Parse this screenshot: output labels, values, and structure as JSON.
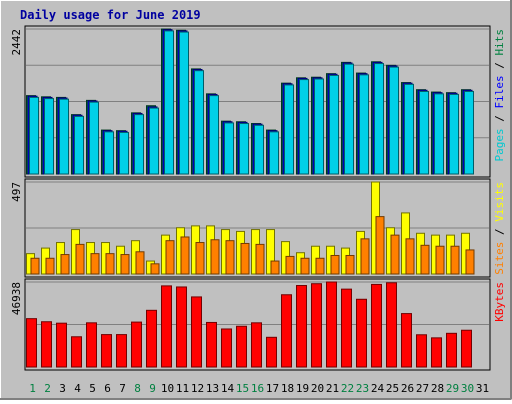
{
  "chart_data": {
    "type": "bar",
    "title": "Daily usage for June 2019",
    "categories": [
      "1",
      "2",
      "3",
      "4",
      "5",
      "6",
      "7",
      "8",
      "9",
      "10",
      "11",
      "12",
      "13",
      "14",
      "15",
      "16",
      "17",
      "18",
      "19",
      "20",
      "21",
      "22",
      "23",
      "24",
      "25",
      "26",
      "27",
      "28",
      "29",
      "30",
      "31"
    ],
    "weekend_days": [
      "1",
      "2",
      "8",
      "9",
      "15",
      "16",
      "22",
      "23",
      "29",
      "30"
    ],
    "panels": [
      {
        "max_label": "2442",
        "ymax": 2442,
        "axis_labels": [
          {
            "text": "Pages",
            "color": "#00c8d0"
          },
          {
            "text": " / ",
            "color": "#000000"
          },
          {
            "text": "Files",
            "color": "#0000ff"
          },
          {
            "text": " / ",
            "color": "#000000"
          },
          {
            "text": "Hits",
            "color": "#008040"
          }
        ],
        "series": [
          {
            "name": "Hits",
            "color": "#008040",
            "values": [
              1320,
              1300,
              1290,
              1000,
              1240,
              740,
              730,
              1030,
              1150,
              2442,
              2420,
              1770,
              1350,
              890,
              880,
              850,
              740,
              1530,
              1620,
              1630,
              1690,
              1880,
              1700,
              1890,
              1830,
              1540,
              1420,
              1380,
              1370,
              1420,
              0
            ]
          },
          {
            "name": "Files",
            "color": "#0000ff",
            "values": [
              1310,
              1290,
              1280,
              990,
              1230,
              730,
              720,
              1020,
              1130,
              2430,
              2410,
              1760,
              1340,
              880,
              870,
              840,
              730,
              1520,
              1610,
              1620,
              1680,
              1870,
              1690,
              1880,
              1820,
              1530,
              1410,
              1370,
              1360,
              1410,
              0
            ]
          },
          {
            "name": "Pages",
            "color": "#00d0e8",
            "values": [
              1290,
              1270,
              1260,
              970,
              1210,
              710,
              700,
              1000,
              1110,
              2410,
              2390,
              1740,
              1320,
              860,
              850,
              820,
              710,
              1500,
              1590,
              1600,
              1660,
              1850,
              1670,
              1860,
              1800,
              1510,
              1390,
              1350,
              1340,
              1390,
              0
            ]
          }
        ]
      },
      {
        "max_label": "497",
        "ymax": 497,
        "axis_labels": [
          {
            "text": "Sites",
            "color": "#ff8000"
          },
          {
            "text": " / ",
            "color": "#000000"
          },
          {
            "text": "Visits",
            "color": "#ffff00"
          }
        ],
        "series": [
          {
            "name": "Visits",
            "color": "#ffff00",
            "values": [
              110,
              140,
              170,
              240,
              170,
              170,
              150,
              180,
              70,
              210,
              250,
              260,
              260,
              240,
              230,
              240,
              240,
              175,
              115,
              150,
              150,
              140,
              230,
              497,
              250,
              330,
              220,
              210,
              210,
              220,
              0
            ]
          },
          {
            "name": "Sites",
            "color": "#ff8000",
            "values": [
              85,
              85,
              105,
              160,
              110,
              110,
              105,
              120,
              55,
              180,
              200,
              170,
              185,
              180,
              165,
              160,
              70,
              95,
              85,
              85,
              100,
              100,
              190,
              310,
              210,
              190,
              155,
              150,
              150,
              130,
              0
            ]
          }
        ]
      },
      {
        "max_label": "46938",
        "ymax": 46938,
        "axis_labels": [
          {
            "text": "KBytes",
            "color": "#ff0000"
          }
        ],
        "series": [
          {
            "name": "KBytes",
            "color": "#ff0000",
            "values": [
              26700,
              25000,
              24200,
              16700,
              24400,
              17900,
              17900,
              24800,
              31300,
              44800,
              44200,
              38700,
              24600,
              21000,
              22500,
              24400,
              16400,
              39900,
              45000,
              46000,
              46938,
              43000,
              37400,
              45600,
              46500,
              29500,
              17800,
              16100,
              18600,
              20300,
              0
            ]
          }
        ]
      }
    ]
  }
}
